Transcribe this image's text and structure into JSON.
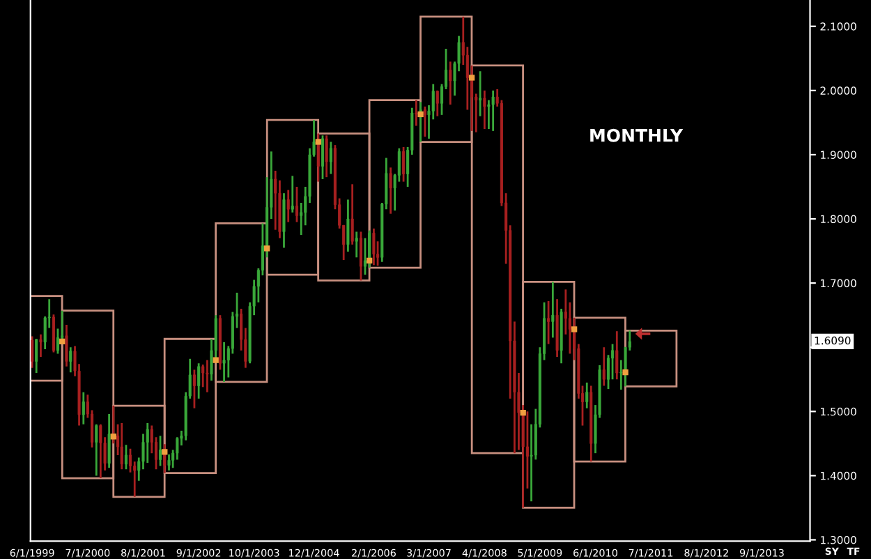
{
  "chart_data": {
    "type": "candlestick",
    "x": [
      "1999-06",
      "1999-07",
      "1999-08",
      "1999-09",
      "1999-10",
      "1999-11",
      "1999-12",
      "2000-01",
      "2000-02",
      "2000-03",
      "2000-04",
      "2000-05",
      "2000-06",
      "2000-07",
      "2000-08",
      "2000-09",
      "2000-10",
      "2000-11",
      "2000-12",
      "2001-01",
      "2001-02",
      "2001-03",
      "2001-04",
      "2001-05",
      "2001-06",
      "2001-07",
      "2001-08",
      "2001-09",
      "2001-10",
      "2001-11",
      "2001-12",
      "2002-01",
      "2002-02",
      "2002-03",
      "2002-04",
      "2002-05",
      "2002-06",
      "2002-07",
      "2002-08",
      "2002-09",
      "2002-10",
      "2002-11",
      "2002-12",
      "2003-01",
      "2003-02",
      "2003-03",
      "2003-04",
      "2003-05",
      "2003-06",
      "2003-07",
      "2003-08",
      "2003-09",
      "2003-10",
      "2003-11",
      "2003-12",
      "2004-01",
      "2004-02",
      "2004-03",
      "2004-04",
      "2004-05",
      "2004-06",
      "2004-07",
      "2004-08",
      "2004-09",
      "2004-10",
      "2004-11",
      "2004-12",
      "2005-01",
      "2005-02",
      "2005-03",
      "2005-04",
      "2005-05",
      "2005-06",
      "2005-07",
      "2005-08",
      "2005-09",
      "2005-10",
      "2005-11",
      "2005-12",
      "2006-01",
      "2006-02",
      "2006-03",
      "2006-04",
      "2006-05",
      "2006-06",
      "2006-07",
      "2006-08",
      "2006-09",
      "2006-10",
      "2006-11",
      "2006-12",
      "2007-01",
      "2007-02",
      "2007-03",
      "2007-04",
      "2007-05",
      "2007-06",
      "2007-07",
      "2007-08",
      "2007-09",
      "2007-10",
      "2007-11",
      "2007-12",
      "2008-01",
      "2008-02",
      "2008-03",
      "2008-04",
      "2008-05",
      "2008-06",
      "2008-07",
      "2008-08",
      "2008-09",
      "2008-10",
      "2008-11",
      "2008-12",
      "2009-01",
      "2009-02",
      "2009-03",
      "2009-04",
      "2009-05",
      "2009-06",
      "2009-07",
      "2009-08",
      "2009-09",
      "2009-10",
      "2009-11",
      "2009-12",
      "2010-01",
      "2010-02",
      "2010-03",
      "2010-04",
      "2010-05",
      "2010-06",
      "2010-07",
      "2010-08",
      "2010-09",
      "2010-10",
      "2010-11",
      "2010-12",
      "2011-01",
      "2011-02"
    ],
    "ohlc": [
      [
        1.611,
        1.617,
        1.568,
        1.578
      ],
      [
        1.578,
        1.613,
        1.56,
        1.612
      ],
      [
        1.612,
        1.62,
        1.585,
        1.608
      ],
      [
        1.608,
        1.648,
        1.597,
        1.646
      ],
      [
        1.646,
        1.675,
        1.63,
        1.647
      ],
      [
        1.647,
        1.651,
        1.592,
        1.595
      ],
      [
        1.595,
        1.629,
        1.59,
        1.615
      ],
      [
        1.615,
        1.657,
        1.608,
        1.618
      ],
      [
        1.618,
        1.635,
        1.57,
        1.578
      ],
      [
        1.578,
        1.6,
        1.561,
        1.594
      ],
      [
        1.594,
        1.602,
        1.555,
        1.563
      ],
      [
        1.563,
        1.574,
        1.478,
        1.495
      ],
      [
        1.495,
        1.53,
        1.48,
        1.515
      ],
      [
        1.515,
        1.526,
        1.49,
        1.496
      ],
      [
        1.496,
        1.502,
        1.444,
        1.452
      ],
      [
        1.452,
        1.48,
        1.4,
        1.478
      ],
      [
        1.478,
        1.48,
        1.396,
        1.451
      ],
      [
        1.451,
        1.46,
        1.408,
        1.419
      ],
      [
        1.419,
        1.496,
        1.412,
        1.465
      ],
      [
        1.465,
        1.509,
        1.45,
        1.462
      ],
      [
        1.462,
        1.48,
        1.432,
        1.445
      ],
      [
        1.445,
        1.482,
        1.41,
        1.418
      ],
      [
        1.418,
        1.448,
        1.41,
        1.432
      ],
      [
        1.432,
        1.442,
        1.405,
        1.415
      ],
      [
        1.415,
        1.422,
        1.367,
        1.408
      ],
      [
        1.408,
        1.428,
        1.392,
        1.422
      ],
      [
        1.422,
        1.465,
        1.41,
        1.452
      ],
      [
        1.452,
        1.482,
        1.42,
        1.472
      ],
      [
        1.472,
        1.478,
        1.435,
        1.452
      ],
      [
        1.452,
        1.46,
        1.41,
        1.425
      ],
      [
        1.425,
        1.462,
        1.415,
        1.44
      ],
      [
        1.44,
        1.449,
        1.404,
        1.416
      ],
      [
        1.416,
        1.433,
        1.408,
        1.424
      ],
      [
        1.424,
        1.44,
        1.412,
        1.435
      ],
      [
        1.435,
        1.46,
        1.425,
        1.458
      ],
      [
        1.458,
        1.47,
        1.447,
        1.462
      ],
      [
        1.462,
        1.53,
        1.455,
        1.524
      ],
      [
        1.524,
        1.582,
        1.52,
        1.557
      ],
      [
        1.557,
        1.565,
        1.505,
        1.54
      ],
      [
        1.54,
        1.575,
        1.52,
        1.57
      ],
      [
        1.57,
        1.573,
        1.538,
        1.56
      ],
      [
        1.56,
        1.58,
        1.53,
        1.558
      ],
      [
        1.558,
        1.613,
        1.548,
        1.595
      ],
      [
        1.595,
        1.65,
        1.578,
        1.645
      ],
      [
        1.645,
        1.65,
        1.565,
        1.575
      ],
      [
        1.575,
        1.608,
        1.546,
        1.58
      ],
      [
        1.58,
        1.602,
        1.553,
        1.598
      ],
      [
        1.598,
        1.655,
        1.59,
        1.648
      ],
      [
        1.648,
        1.685,
        1.63,
        1.652
      ],
      [
        1.652,
        1.66,
        1.595,
        1.612
      ],
      [
        1.612,
        1.63,
        1.568,
        1.578
      ],
      [
        1.578,
        1.67,
        1.575,
        1.664
      ],
      [
        1.664,
        1.705,
        1.65,
        1.695
      ],
      [
        1.695,
        1.723,
        1.67,
        1.72
      ],
      [
        1.72,
        1.793,
        1.712,
        1.758
      ],
      [
        1.758,
        1.865,
        1.74,
        1.818
      ],
      [
        1.818,
        1.905,
        1.8,
        1.862
      ],
      [
        1.862,
        1.875,
        1.783,
        1.84
      ],
      [
        1.84,
        1.86,
        1.77,
        1.78
      ],
      [
        1.78,
        1.84,
        1.755,
        1.83
      ],
      [
        1.83,
        1.845,
        1.795,
        1.815
      ],
      [
        1.815,
        1.867,
        1.81,
        1.82
      ],
      [
        1.82,
        1.85,
        1.795,
        1.805
      ],
      [
        1.805,
        1.825,
        1.775,
        1.81
      ],
      [
        1.81,
        1.85,
        1.79,
        1.835
      ],
      [
        1.835,
        1.91,
        1.825,
        1.9
      ],
      [
        1.9,
        1.954,
        1.897,
        1.92
      ],
      [
        1.92,
        1.933,
        1.858,
        1.882
      ],
      [
        1.882,
        1.93,
        1.862,
        1.925
      ],
      [
        1.925,
        1.93,
        1.865,
        1.889
      ],
      [
        1.889,
        1.92,
        1.87,
        1.91
      ],
      [
        1.91,
        1.915,
        1.815,
        1.822
      ],
      [
        1.822,
        1.832,
        1.785,
        1.79
      ],
      [
        1.79,
        1.79,
        1.736,
        1.76
      ],
      [
        1.76,
        1.83,
        1.749,
        1.8
      ],
      [
        1.8,
        1.854,
        1.76,
        1.765
      ],
      [
        1.765,
        1.78,
        1.74,
        1.77
      ],
      [
        1.77,
        1.78,
        1.704,
        1.726
      ],
      [
        1.726,
        1.77,
        1.713,
        1.735
      ],
      [
        1.735,
        1.782,
        1.724,
        1.778
      ],
      [
        1.778,
        1.785,
        1.728,
        1.745
      ],
      [
        1.745,
        1.765,
        1.727,
        1.74
      ],
      [
        1.74,
        1.825,
        1.733,
        1.823
      ],
      [
        1.823,
        1.895,
        1.815,
        1.871
      ],
      [
        1.871,
        1.88,
        1.808,
        1.848
      ],
      [
        1.848,
        1.87,
        1.813,
        1.868
      ],
      [
        1.868,
        1.91,
        1.858,
        1.905
      ],
      [
        1.905,
        1.912,
        1.858,
        1.87
      ],
      [
        1.87,
        1.912,
        1.85,
        1.907
      ],
      [
        1.907,
        1.973,
        1.9,
        1.965
      ],
      [
        1.965,
        1.985,
        1.945,
        1.963
      ],
      [
        1.963,
        1.982,
        1.92,
        1.97
      ],
      [
        1.97,
        1.975,
        1.928,
        1.962
      ],
      [
        1.962,
        1.977,
        1.925,
        1.968
      ],
      [
        1.968,
        2.01,
        1.955,
        1.999
      ],
      [
        1.999,
        2.0,
        1.96,
        1.98
      ],
      [
        1.98,
        2.01,
        1.962,
        2.006
      ],
      [
        2.006,
        2.065,
        2.002,
        2.032
      ],
      [
        2.032,
        2.045,
        1.978,
        2.015
      ],
      [
        2.015,
        2.045,
        1.992,
        2.042
      ],
      [
        2.042,
        2.085,
        2.03,
        2.075
      ],
      [
        2.075,
        2.115,
        2.04,
        2.055
      ],
      [
        2.055,
        2.068,
        1.97,
        2.02
      ],
      [
        2.02,
        2.039,
        1.937,
        1.99
      ],
      [
        1.99,
        1.995,
        1.935,
        1.985
      ],
      [
        1.985,
        2.03,
        1.96,
        1.988
      ],
      [
        1.988,
        2.0,
        1.94,
        1.975
      ],
      [
        1.975,
        1.985,
        1.94,
        1.978
      ],
      [
        1.978,
        2.0,
        1.937,
        1.99
      ],
      [
        1.99,
        2.002,
        1.975,
        1.98
      ],
      [
        1.98,
        1.985,
        1.82,
        1.825
      ],
      [
        1.825,
        1.84,
        1.73,
        1.782
      ],
      [
        1.782,
        1.79,
        1.52,
        1.61
      ],
      [
        1.61,
        1.64,
        1.435,
        1.53
      ],
      [
        1.53,
        1.56,
        1.44,
        1.498
      ],
      [
        1.498,
        1.51,
        1.35,
        1.445
      ],
      [
        1.445,
        1.5,
        1.38,
        1.43
      ],
      [
        1.43,
        1.48,
        1.36,
        1.432
      ],
      [
        1.432,
        1.504,
        1.425,
        1.48
      ],
      [
        1.48,
        1.6,
        1.475,
        1.59
      ],
      [
        1.59,
        1.67,
        1.58,
        1.645
      ],
      [
        1.645,
        1.672,
        1.605,
        1.64
      ],
      [
        1.64,
        1.702,
        1.615,
        1.65
      ],
      [
        1.65,
        1.675,
        1.585,
        1.595
      ],
      [
        1.595,
        1.66,
        1.575,
        1.655
      ],
      [
        1.655,
        1.69,
        1.62,
        1.645
      ],
      [
        1.645,
        1.67,
        1.59,
        1.628
      ],
      [
        1.628,
        1.646,
        1.58,
        1.598
      ],
      [
        1.598,
        1.605,
        1.52,
        1.528
      ],
      [
        1.528,
        1.54,
        1.478,
        1.515
      ],
      [
        1.515,
        1.545,
        1.505,
        1.53
      ],
      [
        1.53,
        1.54,
        1.422,
        1.45
      ],
      [
        1.45,
        1.51,
        1.435,
        1.495
      ],
      [
        1.495,
        1.572,
        1.49,
        1.565
      ],
      [
        1.565,
        1.6,
        1.54,
        1.55
      ],
      [
        1.55,
        1.588,
        1.535,
        1.583
      ],
      [
        1.583,
        1.605,
        1.55,
        1.595
      ],
      [
        1.595,
        1.625,
        1.55,
        1.56
      ],
      [
        1.56,
        1.58,
        1.534,
        1.561
      ],
      [
        1.561,
        1.6,
        1.539,
        1.6
      ],
      [
        1.6,
        1.626,
        1.595,
        1.609
      ]
    ],
    "colors": [
      "#a82020",
      "#3aa83a",
      "#a82020",
      "#3aa83a",
      "#3aa83a",
      "#a82020",
      "#3aa83a",
      "#3aa83a",
      "#a82020",
      "#3aa83a",
      "#a82020",
      "#a82020",
      "#3aa83a",
      "#a82020",
      "#a82020",
      "#3aa83a",
      "#a82020",
      "#a82020",
      "#3aa83a",
      "#a82020",
      "#a82020",
      "#a82020",
      "#3aa83a",
      "#a82020",
      "#a82020",
      "#3aa83a",
      "#3aa83a",
      "#3aa83a",
      "#a82020",
      "#a82020",
      "#3aa83a",
      "#a82020",
      "#3aa83a",
      "#3aa83a",
      "#3aa83a",
      "#3aa83a",
      "#3aa83a",
      "#3aa83a",
      "#a82020",
      "#3aa83a",
      "#a82020",
      "#a82020",
      "#3aa83a",
      "#3aa83a",
      "#a82020",
      "#3aa83a",
      "#3aa83a",
      "#3aa83a",
      "#3aa83a",
      "#a82020",
      "#a82020",
      "#3aa83a",
      "#3aa83a",
      "#3aa83a",
      "#3aa83a",
      "#3aa83a",
      "#3aa83a",
      "#a82020",
      "#a82020",
      "#3aa83a",
      "#a82020",
      "#3aa83a",
      "#a82020",
      "#3aa83a",
      "#3aa83a",
      "#3aa83a",
      "#3aa83a",
      "#a82020",
      "#3aa83a",
      "#a82020",
      "#3aa83a",
      "#a82020",
      "#a82020",
      "#a82020",
      "#3aa83a",
      "#a82020",
      "#3aa83a",
      "#a82020",
      "#3aa83a",
      "#3aa83a",
      "#a82020",
      "#a82020",
      "#3aa83a",
      "#3aa83a",
      "#a82020",
      "#3aa83a",
      "#3aa83a",
      "#a82020",
      "#3aa83a",
      "#3aa83a",
      "#a82020",
      "#3aa83a",
      "#a82020",
      "#3aa83a",
      "#3aa83a",
      "#a82020",
      "#3aa83a",
      "#3aa83a",
      "#a82020",
      "#3aa83a",
      "#3aa83a",
      "#a82020",
      "#a82020",
      "#a82020",
      "#a82020",
      "#3aa83a",
      "#a82020",
      "#3aa83a",
      "#3aa83a",
      "#a82020",
      "#a82020",
      "#a82020",
      "#a82020",
      "#a82020",
      "#a82020",
      "#a82020",
      "#a82020",
      "#3aa83a",
      "#3aa83a",
      "#3aa83a",
      "#3aa83a",
      "#a82020",
      "#3aa83a",
      "#a82020",
      "#3aa83a",
      "#a82020",
      "#a82020",
      "#a82020",
      "#a82020",
      "#a82020",
      "#3aa83a",
      "#a82020",
      "#3aa83a",
      "#3aa83a",
      "#a82020",
      "#3aa83a",
      "#3aa83a",
      "#a82020",
      "#3aa83a",
      "#3aa83a",
      "#3aa83a"
    ],
    "series": [
      {
        "type": "bar",
        "color": "#c89080",
        "x": [
          "1999-07-02",
          "2000-07-02",
          "2001-07-02",
          "2002-07-02",
          "2003-07-02",
          "2004-07-02",
          "2005-07-02",
          "2006-07-02",
          "2007-07-02",
          "2008-07-02",
          "2009-07-02",
          "2010-07-02",
          "2011-07-02"
        ],
        "base": [
          1.548,
          1.396,
          1.367,
          1.404,
          1.546,
          1.713,
          1.704,
          1.724,
          1.92,
          1.435,
          1.35,
          1.422,
          1.539
        ],
        "values": [
          0.132,
          0.261,
          0.142,
          0.209,
          0.247,
          0.241,
          0.229,
          0.261,
          0.195,
          0.604,
          0.352,
          0.224,
          0.087
        ]
      },
      {
        "type": "scatter",
        "color": "#f0a040",
        "marker": "square",
        "x": [
          "2000-01",
          "2001-01",
          "2002-01",
          "2003-01",
          "2004-01",
          "2005-01",
          "2006-01",
          "2007-01",
          "2008-01",
          "2009-01",
          "2010-01",
          "2011-01"
        ],
        "values": [
          1.609,
          1.461,
          1.437,
          1.58,
          1.754,
          1.92,
          1.735,
          1.963,
          2.02,
          1.498,
          1.628,
          1.561
        ]
      }
    ],
    "xlim": [
      "1999-05-20",
      "2014-08-10"
    ],
    "xticks": [
      {
        "value": "1999-06-01",
        "label": "6/1/1999"
      },
      {
        "value": "2000-07-01",
        "label": "7/1/2000"
      },
      {
        "value": "2001-08-01",
        "label": "8/1/2001"
      },
      {
        "value": "2002-09-01",
        "label": "9/1/2002"
      },
      {
        "value": "2003-10-01",
        "label": "10/1/2003"
      },
      {
        "value": "2004-12-01",
        "label": "12/1/2004"
      },
      {
        "value": "2006-02-01",
        "label": "2/1/2006"
      },
      {
        "value": "2007-03-01",
        "label": "3/1/2007"
      },
      {
        "value": "2008-04-01",
        "label": "4/1/2008"
      },
      {
        "value": "2009-05-01",
        "label": "5/1/2009"
      },
      {
        "value": "2010-06-01",
        "label": "6/1/2010"
      },
      {
        "value": "2011-07-01",
        "label": "7/1/2011"
      },
      {
        "value": "2012-08-01",
        "label": "8/1/2012"
      },
      {
        "value": "2013-09-01",
        "label": "9/1/2013"
      }
    ],
    "ylim": [
      1.298,
      2.141
    ],
    "yticks": [
      {
        "value": 1.3,
        "label": "1.3000"
      },
      {
        "value": 1.4,
        "label": "1.4000"
      },
      {
        "value": 1.5,
        "label": "1.5000"
      },
      {
        "value": 1.6,
        "label": null
      },
      {
        "value": 1.7,
        "label": "1.7000"
      },
      {
        "value": 1.8,
        "label": "1.8000"
      },
      {
        "value": 1.9,
        "label": "1.9000"
      },
      {
        "value": 2.0,
        "label": "2.0000"
      },
      {
        "value": 2.1,
        "label": "2.1000"
      }
    ],
    "annotations": [
      "MONTHLY",
      "1.6090",
      "SY",
      "TF"
    ],
    "grid": false,
    "legend": false
  }
}
